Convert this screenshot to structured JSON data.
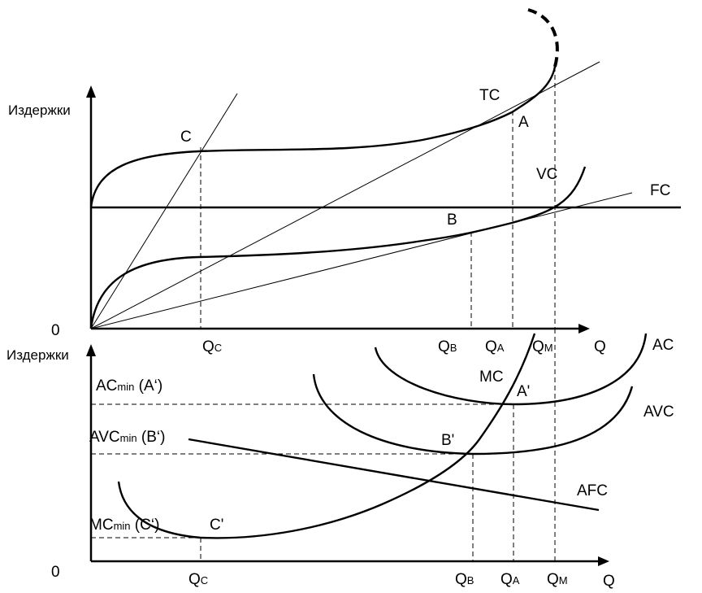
{
  "top_graph": {
    "y_axis_label": "Издержки",
    "x_axis_label": "Q",
    "origin_label": "0",
    "curves": {
      "tc": "TC",
      "vc": "VC",
      "fc": "FC"
    },
    "points": {
      "a": "A",
      "b": "B",
      "c": "C"
    },
    "x_ticks": [
      {
        "main": "Q",
        "sub": "C"
      },
      {
        "main": "Q",
        "sub": "B"
      },
      {
        "main": "Q",
        "sub": "A"
      },
      {
        "main": "Q",
        "sub": "M"
      }
    ]
  },
  "bottom_graph": {
    "y_axis_label": "Издержки",
    "x_axis_label": "Q",
    "origin_label": "0",
    "curves": {
      "ac": "AC",
      "avc": "AVC",
      "afc": "AFC",
      "mc": "MC"
    },
    "points": {
      "a_prime": "A'",
      "b_prime": "B'",
      "c_prime": "C'"
    },
    "y_ticks": {
      "ac_min": {
        "main": "AC",
        "sub": "min",
        "tail": " (A‘)"
      },
      "avc_min": {
        "main": "AVC",
        "sub": "min",
        "tail": " (B‘)"
      },
      "mc_min": {
        "main": "MC",
        "sub": "min",
        "tail": " (C‘)"
      }
    },
    "x_ticks": [
      {
        "main": "Q",
        "sub": "C"
      },
      {
        "main": "Q",
        "sub": "B"
      },
      {
        "main": "Q",
        "sub": "A"
      },
      {
        "main": "Q",
        "sub": "M"
      }
    ]
  }
}
